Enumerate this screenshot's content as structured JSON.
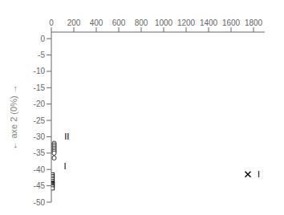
{
  "chart_data": {
    "type": "scatter",
    "ylabel": "← axe 2 (0%) →",
    "xlim": [
      0,
      1900
    ],
    "ylim": [
      -50,
      2
    ],
    "xticks": [
      0,
      200,
      400,
      600,
      800,
      1000,
      1200,
      1400,
      1600,
      1800
    ],
    "yticks": [
      0,
      -5,
      -10,
      -15,
      -20,
      -25,
      -30,
      -35,
      -40,
      -45,
      -50
    ],
    "grid": false,
    "series": [
      {
        "x": [
          12,
          12,
          12,
          12,
          12,
          12,
          12,
          12,
          12,
          12,
          12,
          12
        ],
        "values": [
          -41.5,
          -42.0,
          -42.5,
          -43.0,
          -43.5,
          -44.0,
          -44.2,
          -44.5,
          -44.8,
          -45.0,
          -45.3,
          -45.8
        ],
        "marker": "square",
        "color": "#000000"
      },
      {
        "x": [
          25,
          25,
          25,
          25,
          25,
          25,
          25,
          25
        ],
        "values": [
          -32.0,
          -32.5,
          -33.0,
          -33.5,
          -34.0,
          -34.5,
          -35.0,
          -36.5
        ],
        "marker": "circle",
        "color": "#000000"
      },
      {
        "x": [
          1750
        ],
        "values": [
          -41.5
        ],
        "marker": "x",
        "color": "#000000"
      }
    ],
    "annotations": [
      {
        "text": "I",
        "x": 75,
        "y": -39.0
      },
      {
        "text": "II",
        "x": 80,
        "y": -30.0
      },
      {
        "text": "I",
        "x": 1800,
        "y": -41.5
      }
    ]
  }
}
